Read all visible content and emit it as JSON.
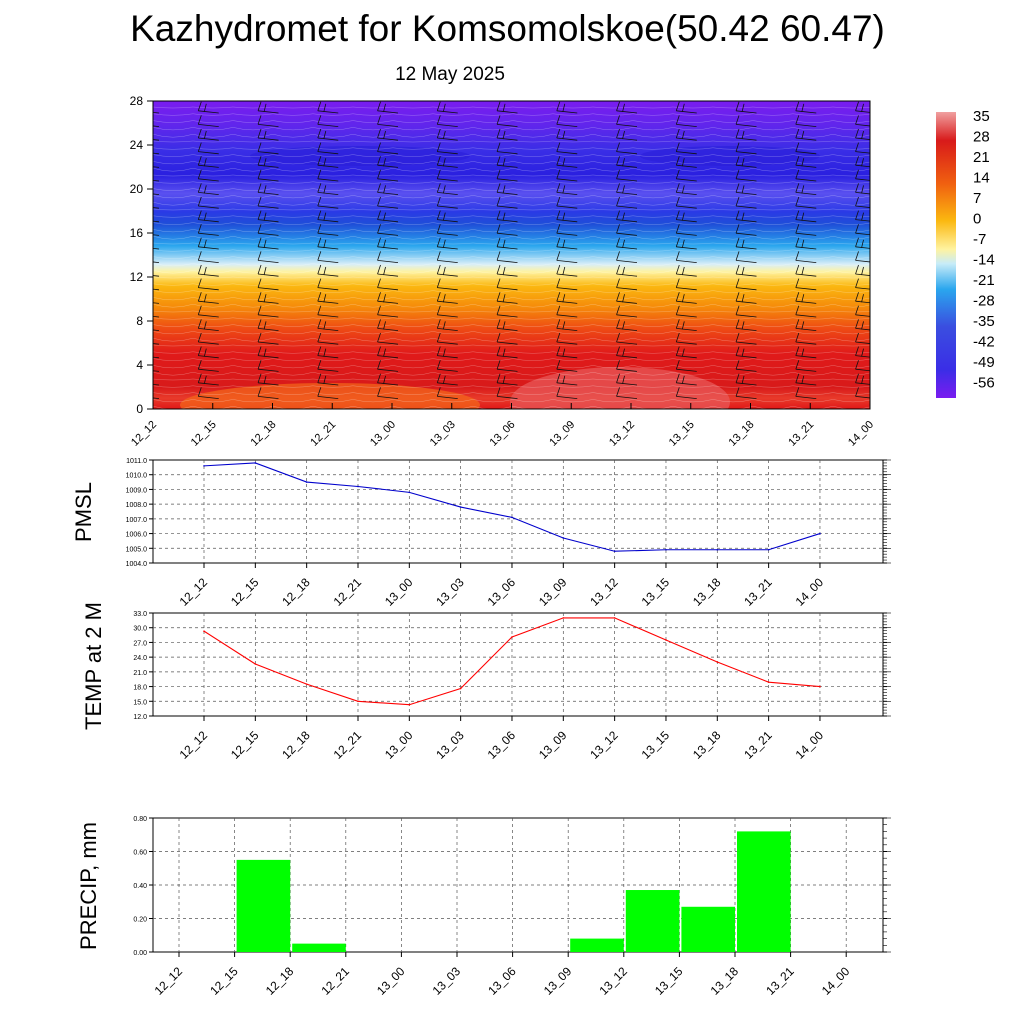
{
  "title": "Kazhydromet for Komsomolskoe(50.42 60.47)",
  "subtitle": "12 May 2025",
  "chart_data": [
    {
      "type": "heatmap",
      "x": [
        "12_12",
        "12_15",
        "12_18",
        "12_21",
        "13_00",
        "13_03",
        "13_06",
        "13_09",
        "13_12",
        "13_15",
        "13_18",
        "13_21",
        "14_00"
      ],
      "y_ticks": [
        "0",
        "4",
        "8",
        "12",
        "16",
        "20",
        "24",
        "28"
      ],
      "ylim": [
        0,
        28
      ],
      "colorbar_labels": [
        "35",
        "28",
        "21",
        "14",
        "7",
        "0",
        "-7",
        "-14",
        "-21",
        "-28",
        "-35",
        "-42",
        "-49",
        "-56"
      ],
      "note_overlay": "wind barbs",
      "colors": {
        "high": "#d81e1e",
        "warm": "#f58a0a",
        "zero": "#fff3a0",
        "cool": "#2aa6ee",
        "cold": "#3d32e6",
        "coldest": "#7a1cf0"
      }
    },
    {
      "type": "line",
      "ylabel": "PMSL",
      "x": [
        "12_12",
        "12_15",
        "12_18",
        "12_21",
        "13_00",
        "13_03",
        "13_06",
        "13_09",
        "13_12",
        "13_15",
        "13_18",
        "13_21",
        "14_00"
      ],
      "values": [
        1010.6,
        1010.8,
        1009.5,
        1009.2,
        1008.8,
        1007.8,
        1007.1,
        1005.7,
        1004.8,
        1004.9,
        1004.9,
        1004.9,
        1006.0
      ],
      "ylim": [
        1004,
        1011
      ],
      "y_ticks": [
        "1004.0",
        "1005.0",
        "1006.0",
        "1007.0",
        "1008.0",
        "1009.0",
        "1010.0",
        "1011.0"
      ],
      "color": "#0000cc"
    },
    {
      "type": "line",
      "ylabel": "TEMP at 2 M",
      "x": [
        "12_12",
        "12_15",
        "12_18",
        "12_21",
        "13_00",
        "13_03",
        "13_06",
        "13_09",
        "13_12",
        "13_15",
        "13_18",
        "13_21",
        "14_00"
      ],
      "values": [
        29.3,
        22.6,
        18.5,
        15.0,
        14.3,
        17.6,
        28.1,
        32.0,
        32.0,
        27.5,
        23.0,
        18.9,
        18.0
      ],
      "ylim": [
        12,
        33
      ],
      "y_ticks": [
        "12.0",
        "15.0",
        "18.0",
        "21.0",
        "24.0",
        "27.0",
        "30.0",
        "33.0"
      ],
      "color": "#ff0000"
    },
    {
      "type": "bar",
      "ylabel": "PRECIP, mm",
      "x": [
        "12_12",
        "12_15",
        "12_18",
        "12_21",
        "13_00",
        "13_03",
        "13_06",
        "13_09",
        "13_12",
        "13_15",
        "13_18",
        "13_21",
        "14_00"
      ],
      "values": [
        0,
        0.55,
        0.05,
        0,
        0,
        0,
        0,
        0.08,
        0.37,
        0.27,
        0.72,
        0,
        0
      ],
      "ylim": [
        0,
        0.8
      ],
      "y_ticks": [
        "0.00",
        "0.20",
        "0.40",
        "0.60",
        "0.80"
      ],
      "color": "#00ff00"
    }
  ]
}
